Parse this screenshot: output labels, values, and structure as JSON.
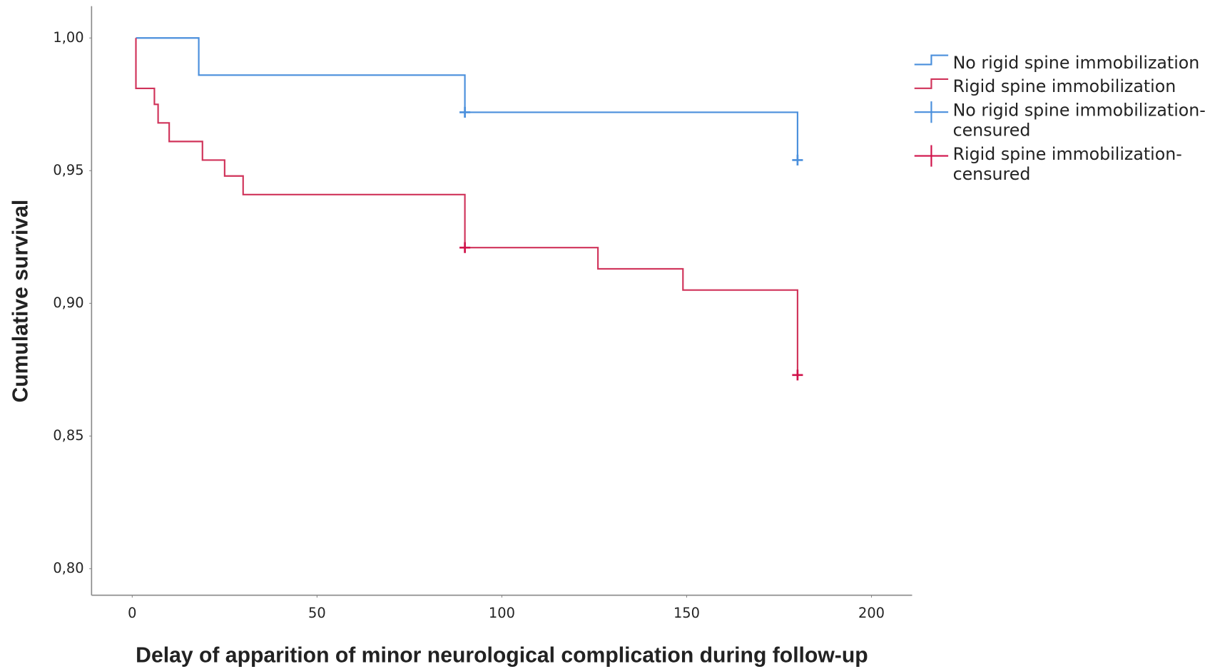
{
  "chart_data": {
    "type": "line",
    "x_label": "Delay of apparition of minor neurological complication during follow-up",
    "y_label": "Cumulative survival",
    "xlim": [
      -11,
      211
    ],
    "ylim": [
      0.79,
      1.012
    ],
    "xticks": [
      0,
      50,
      100,
      150,
      200
    ],
    "yticks": [
      {
        "value": 0.8,
        "label": "0,80"
      },
      {
        "value": 0.85,
        "label": "0,85"
      },
      {
        "value": 0.9,
        "label": "0,90"
      },
      {
        "value": 0.95,
        "label": "0,95"
      },
      {
        "value": 1.0,
        "label": "1,00"
      }
    ],
    "legend": "right",
    "series": [
      {
        "name": "No rigid spine immobilization",
        "color": "#4a8fdc",
        "type": "step",
        "x": [
          1,
          18,
          90,
          180
        ],
        "values": [
          1.0,
          0.986,
          0.972,
          0.954
        ]
      },
      {
        "name": "Rigid spine immobilization",
        "color": "#d0335a",
        "type": "step",
        "x": [
          1,
          1,
          6,
          7,
          10,
          19,
          25,
          30,
          90,
          126,
          149,
          180
        ],
        "values": [
          1.0,
          0.981,
          0.975,
          0.968,
          0.961,
          0.954,
          0.948,
          0.941,
          0.921,
          0.913,
          0.905,
          0.873
        ]
      },
      {
        "name": "No rigid spine immobilization-censured",
        "color": "#4a8fdc",
        "type": "censored",
        "x": [
          90,
          180
        ],
        "values": [
          0.972,
          0.954
        ]
      },
      {
        "name": "Rigid spine immobilization-censured",
        "color": "#d0124a",
        "type": "censored",
        "x": [
          90,
          180
        ],
        "values": [
          0.921,
          0.873
        ]
      }
    ]
  }
}
